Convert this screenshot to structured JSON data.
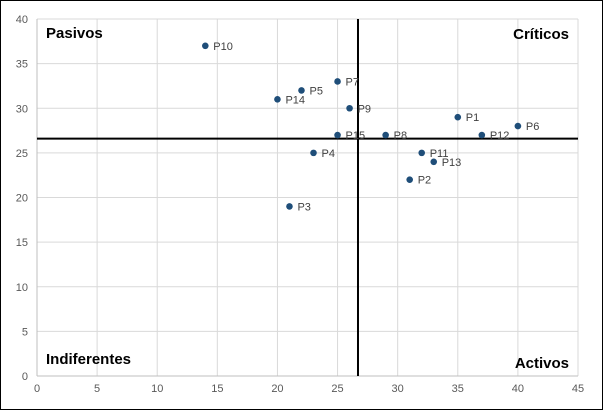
{
  "chart_data": {
    "type": "scatter",
    "title": "",
    "xlabel": "",
    "ylabel": "",
    "xlim": [
      0,
      45
    ],
    "ylim": [
      0,
      40
    ],
    "x_ticks": [
      0,
      5,
      10,
      15,
      20,
      25,
      30,
      35,
      40,
      45
    ],
    "y_ticks": [
      0,
      5,
      10,
      15,
      20,
      25,
      30,
      35,
      40
    ],
    "grid": true,
    "point_color": "#1f4e79",
    "divider_x": 26.7,
    "divider_y": 26.6,
    "quadrants": {
      "top_left": "Pasivos",
      "top_right": "Críticos",
      "bottom_left": "Indiferentes",
      "bottom_right": "Activos"
    },
    "points": [
      {
        "label": "P1",
        "x": 35,
        "y": 29
      },
      {
        "label": "P2",
        "x": 31,
        "y": 22
      },
      {
        "label": "P3",
        "x": 21,
        "y": 19
      },
      {
        "label": "P4",
        "x": 23,
        "y": 25
      },
      {
        "label": "P5",
        "x": 22,
        "y": 32
      },
      {
        "label": "P6",
        "x": 40,
        "y": 28
      },
      {
        "label": "P7",
        "x": 25,
        "y": 33
      },
      {
        "label": "P8",
        "x": 29,
        "y": 27
      },
      {
        "label": "P9",
        "x": 26,
        "y": 30
      },
      {
        "label": "P10",
        "x": 14,
        "y": 37
      },
      {
        "label": "P11",
        "x": 32,
        "y": 25
      },
      {
        "label": "P12",
        "x": 37,
        "y": 27
      },
      {
        "label": "P13",
        "x": 33,
        "y": 24
      },
      {
        "label": "P14",
        "x": 20,
        "y": 31
      },
      {
        "label": "P15",
        "x": 25,
        "y": 27
      }
    ]
  }
}
